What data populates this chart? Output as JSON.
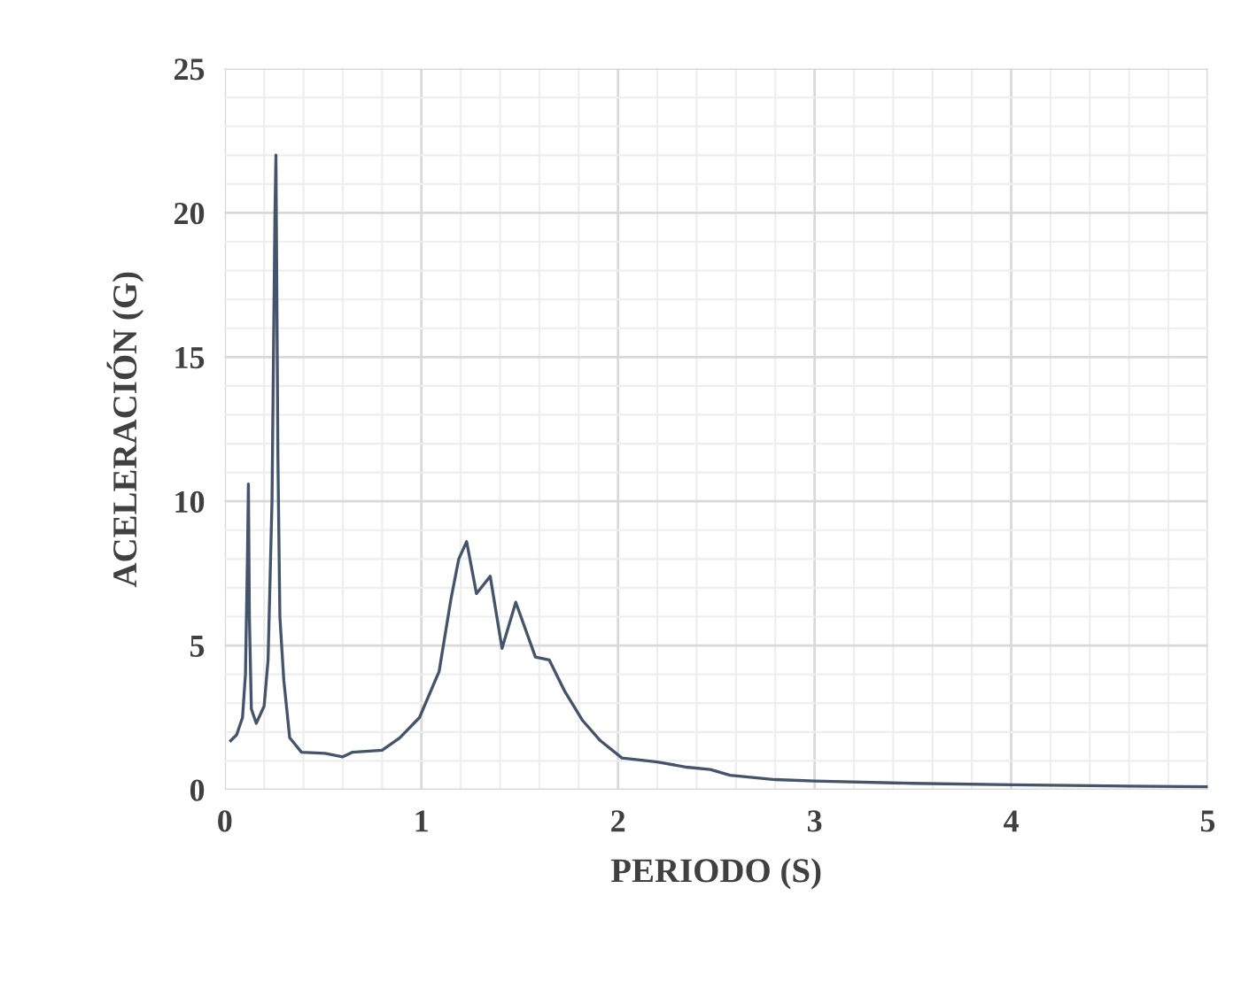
{
  "chart_data": {
    "type": "line",
    "xlabel": "PERIODO (S)",
    "ylabel": "ACELERACIÓN (G)",
    "xlim": [
      0,
      5
    ],
    "ylim": [
      0,
      25
    ],
    "xticks": [
      0,
      1,
      2,
      3,
      4,
      5
    ],
    "yticks": [
      0,
      5,
      10,
      15,
      20,
      25
    ],
    "grid": true,
    "legend": false,
    "marker": "none",
    "line_style": "solid",
    "series": [
      {
        "color": "#44546a",
        "x": [
          0.03,
          0.06,
          0.09,
          0.105,
          0.115,
          0.12,
          0.125,
          0.135,
          0.16,
          0.2,
          0.22,
          0.24,
          0.255,
          0.26,
          0.27,
          0.28,
          0.3,
          0.33,
          0.39,
          0.51,
          0.6,
          0.65,
          0.8,
          0.89,
          0.99,
          1.09,
          1.15,
          1.19,
          1.23,
          1.28,
          1.35,
          1.41,
          1.48,
          1.58,
          1.65,
          1.73,
          1.82,
          1.91,
          2.02,
          2.2,
          2.35,
          2.47,
          2.57,
          2.8,
          3.0,
          3.5,
          4.0,
          4.5,
          5.0
        ],
        "values": [
          1.7,
          1.9,
          2.5,
          4.0,
          8.0,
          10.6,
          6.0,
          2.8,
          2.3,
          2.9,
          4.5,
          10.0,
          20.0,
          22.0,
          11.6,
          6.0,
          3.8,
          1.8,
          1.3,
          1.26,
          1.14,
          1.3,
          1.37,
          1.8,
          2.5,
          4.1,
          6.6,
          8.0,
          8.6,
          6.8,
          7.4,
          4.9,
          6.5,
          4.6,
          4.5,
          3.4,
          2.4,
          1.7,
          1.1,
          0.96,
          0.78,
          0.7,
          0.5,
          0.35,
          0.3,
          0.22,
          0.17,
          0.13,
          0.1
        ]
      }
    ]
  }
}
